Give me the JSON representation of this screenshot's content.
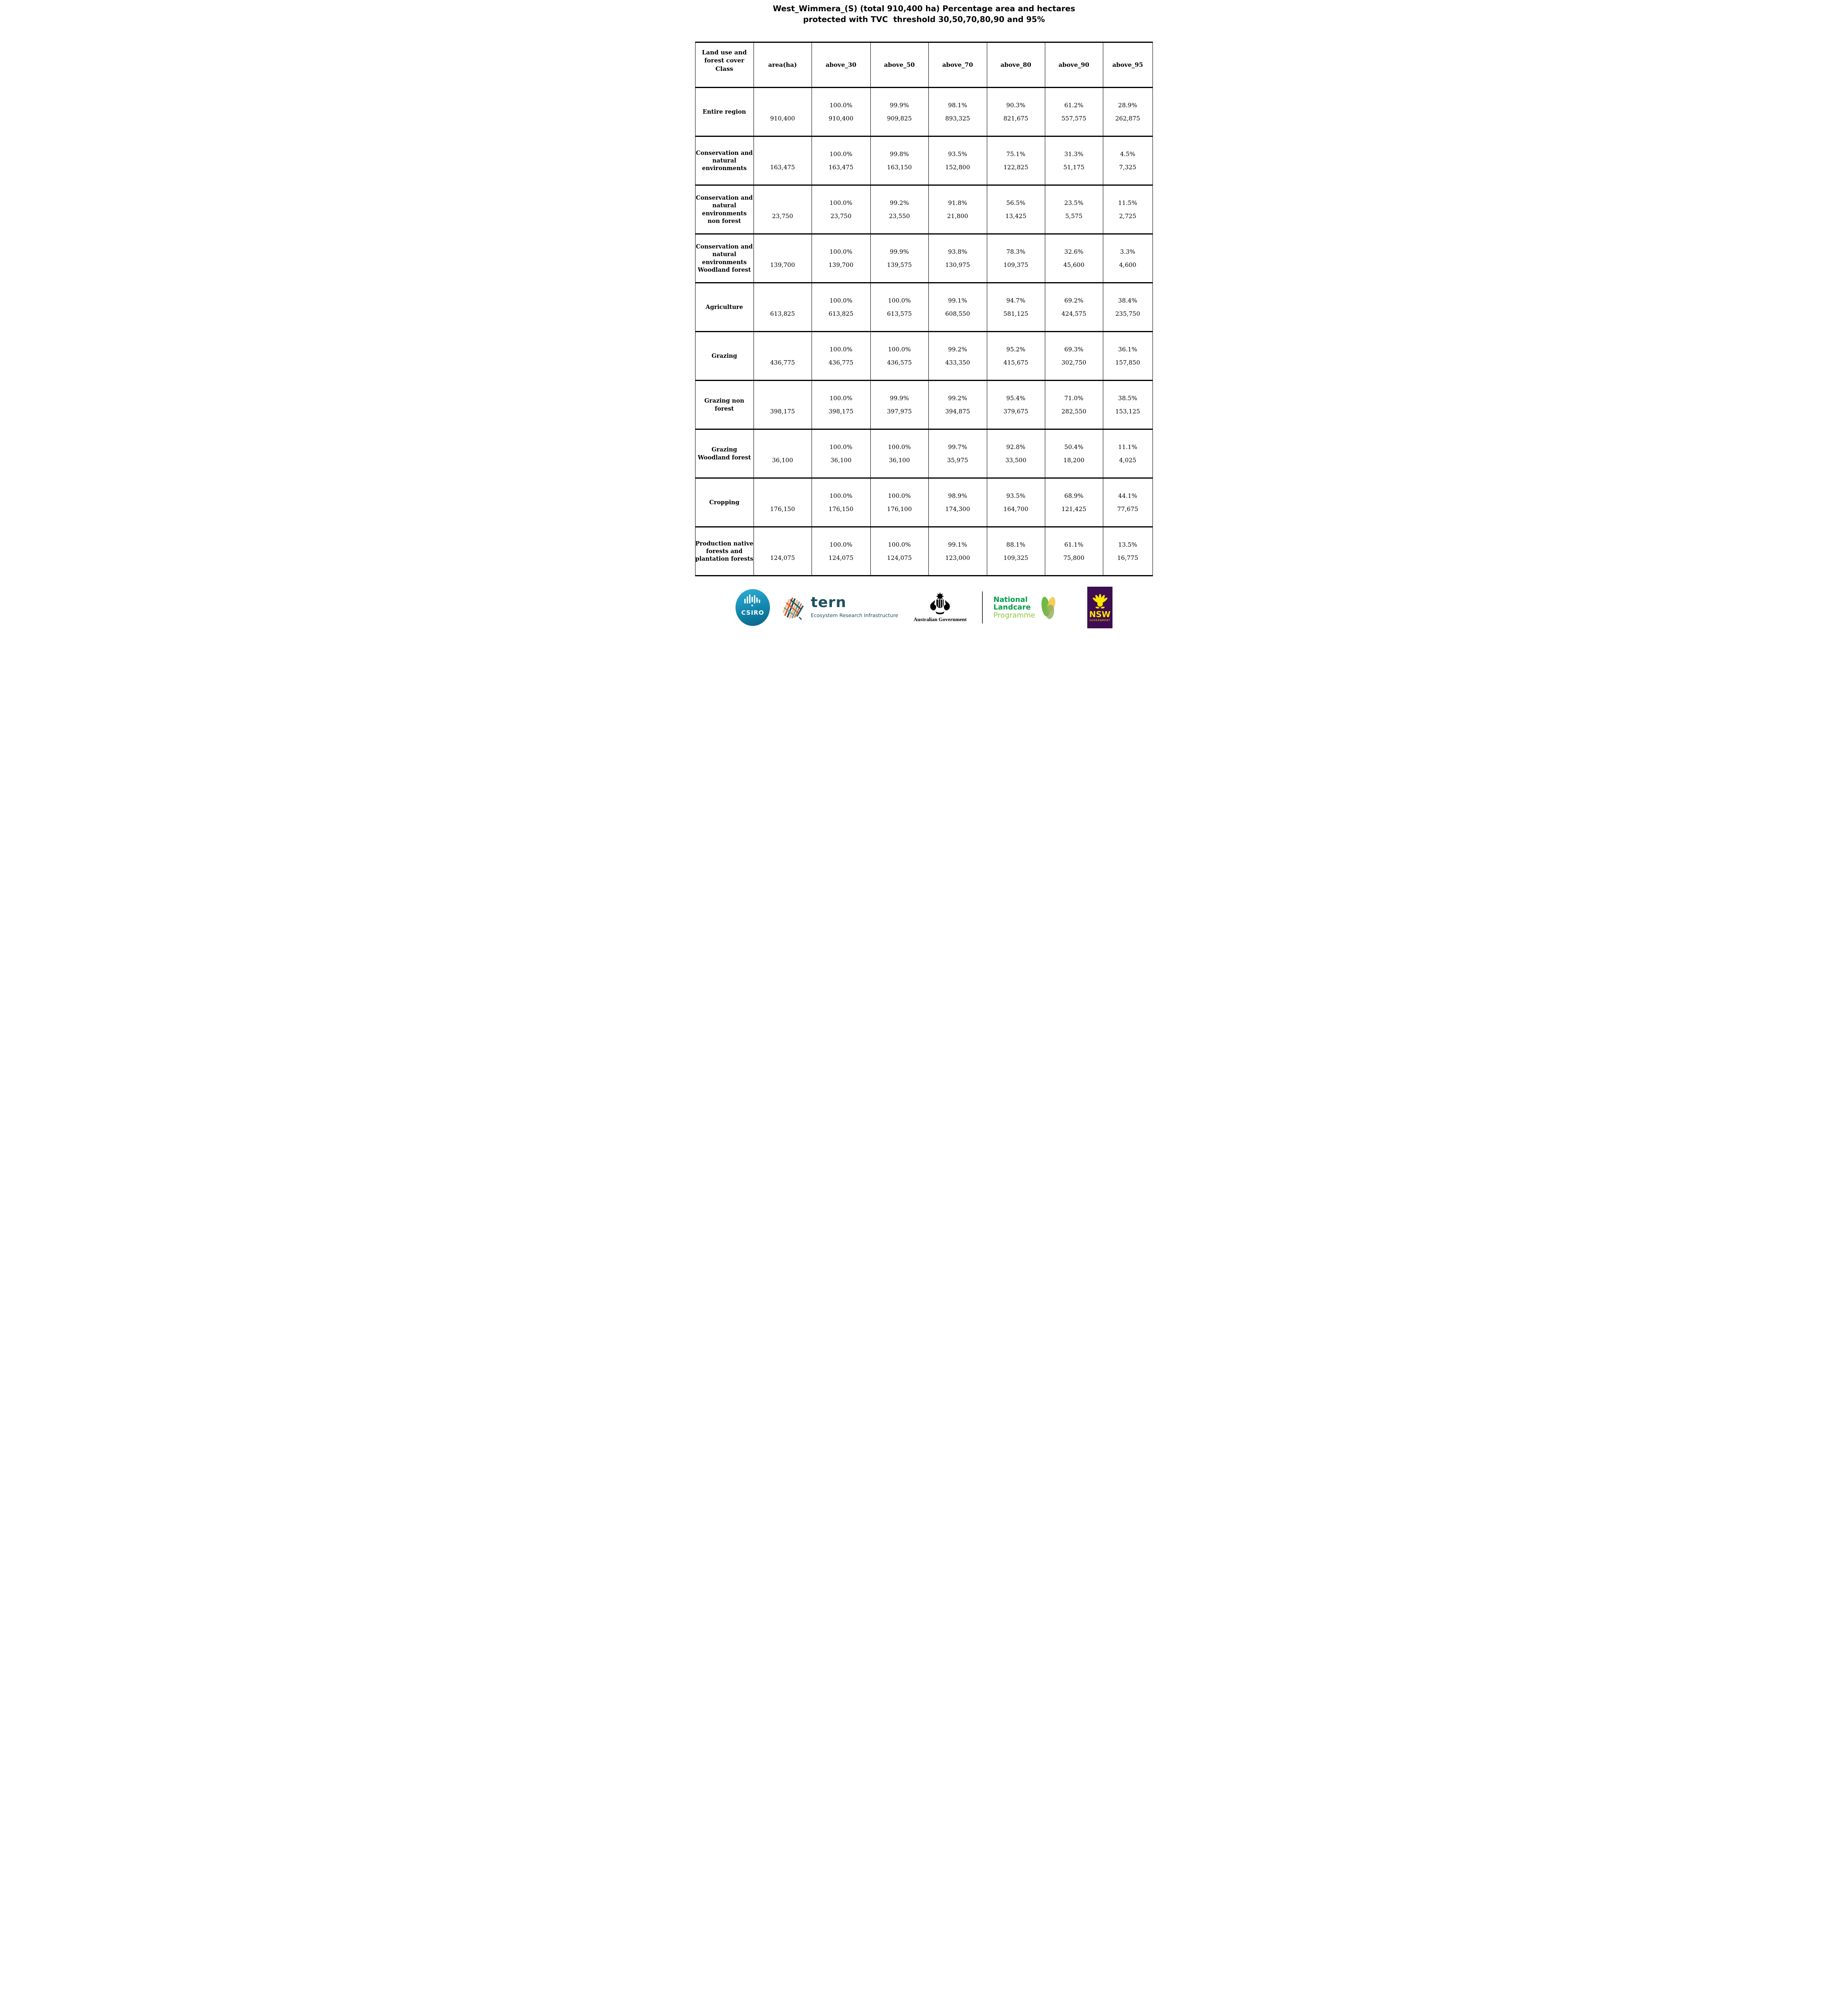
{
  "title": {
    "line1": "West_Wimmera_(S) (total 910,400 ha) Percentage area and hectares",
    "line2": "protected with TVC  threshold 30,50,70,80,90 and 95%"
  },
  "chart_data": {
    "type": "table",
    "title": "West_Wimmera_(S) (total 910,400 ha) Percentage area and hectares protected with TVC  threshold 30,50,70,80,90 and 95%",
    "region_total_ha": "910,400",
    "thresholds": [
      30,
      50,
      70,
      80,
      90,
      95
    ],
    "columns": [
      "Land use and forest cover Class",
      "area(ha)",
      "above_30",
      "above_50",
      "above_70",
      "above_80",
      "above_90",
      "above_95"
    ],
    "rows": [
      {
        "label": "Entire region",
        "area_ha": "910,400",
        "values": [
          {
            "pct": "100.0%",
            "ha": "910,400"
          },
          {
            "pct": "99.9%",
            "ha": "909,825"
          },
          {
            "pct": "98.1%",
            "ha": "893,325"
          },
          {
            "pct": "90.3%",
            "ha": "821,675"
          },
          {
            "pct": "61.2%",
            "ha": "557,575"
          },
          {
            "pct": "28.9%",
            "ha": "262,875"
          }
        ]
      },
      {
        "label": "Conservation and natural environments",
        "area_ha": "163,475",
        "values": [
          {
            "pct": "100.0%",
            "ha": "163,475"
          },
          {
            "pct": "99.8%",
            "ha": "163,150"
          },
          {
            "pct": "93.5%",
            "ha": "152,800"
          },
          {
            "pct": "75.1%",
            "ha": "122,825"
          },
          {
            "pct": "31.3%",
            "ha": "51,175"
          },
          {
            "pct": "4.5%",
            "ha": "7,325"
          }
        ]
      },
      {
        "label": "Conservation and natural environments non forest",
        "area_ha": "23,750",
        "values": [
          {
            "pct": "100.0%",
            "ha": "23,750"
          },
          {
            "pct": "99.2%",
            "ha": "23,550"
          },
          {
            "pct": "91.8%",
            "ha": "21,800"
          },
          {
            "pct": "56.5%",
            "ha": "13,425"
          },
          {
            "pct": "23.5%",
            "ha": "5,575"
          },
          {
            "pct": "11.5%",
            "ha": "2,725"
          }
        ]
      },
      {
        "label": "Conservation and natural environments Woodland forest",
        "area_ha": "139,700",
        "values": [
          {
            "pct": "100.0%",
            "ha": "139,700"
          },
          {
            "pct": "99.9%",
            "ha": "139,575"
          },
          {
            "pct": "93.8%",
            "ha": "130,975"
          },
          {
            "pct": "78.3%",
            "ha": "109,375"
          },
          {
            "pct": "32.6%",
            "ha": "45,600"
          },
          {
            "pct": "3.3%",
            "ha": "4,600"
          }
        ]
      },
      {
        "label": "Agriculture",
        "area_ha": "613,825",
        "values": [
          {
            "pct": "100.0%",
            "ha": "613,825"
          },
          {
            "pct": "100.0%",
            "ha": "613,575"
          },
          {
            "pct": "99.1%",
            "ha": "608,550"
          },
          {
            "pct": "94.7%",
            "ha": "581,125"
          },
          {
            "pct": "69.2%",
            "ha": "424,575"
          },
          {
            "pct": "38.4%",
            "ha": "235,750"
          }
        ]
      },
      {
        "label": "Grazing",
        "area_ha": "436,775",
        "values": [
          {
            "pct": "100.0%",
            "ha": "436,775"
          },
          {
            "pct": "100.0%",
            "ha": "436,575"
          },
          {
            "pct": "99.2%",
            "ha": "433,350"
          },
          {
            "pct": "95.2%",
            "ha": "415,675"
          },
          {
            "pct": "69.3%",
            "ha": "302,750"
          },
          {
            "pct": "36.1%",
            "ha": "157,850"
          }
        ]
      },
      {
        "label": "Grazing non forest",
        "area_ha": "398,175",
        "values": [
          {
            "pct": "100.0%",
            "ha": "398,175"
          },
          {
            "pct": "99.9%",
            "ha": "397,975"
          },
          {
            "pct": "99.2%",
            "ha": "394,875"
          },
          {
            "pct": "95.4%",
            "ha": "379,675"
          },
          {
            "pct": "71.0%",
            "ha": "282,550"
          },
          {
            "pct": "38.5%",
            "ha": "153,125"
          }
        ]
      },
      {
        "label": "Grazing Woodland forest",
        "area_ha": "36,100",
        "values": [
          {
            "pct": "100.0%",
            "ha": "36,100"
          },
          {
            "pct": "100.0%",
            "ha": "36,100"
          },
          {
            "pct": "99.7%",
            "ha": "35,975"
          },
          {
            "pct": "92.8%",
            "ha": "33,500"
          },
          {
            "pct": "50.4%",
            "ha": "18,200"
          },
          {
            "pct": "11.1%",
            "ha": "4,025"
          }
        ]
      },
      {
        "label": "Cropping",
        "area_ha": "176,150",
        "values": [
          {
            "pct": "100.0%",
            "ha": "176,150"
          },
          {
            "pct": "100.0%",
            "ha": "176,100"
          },
          {
            "pct": "98.9%",
            "ha": "174,300"
          },
          {
            "pct": "93.5%",
            "ha": "164,700"
          },
          {
            "pct": "68.9%",
            "ha": "121,425"
          },
          {
            "pct": "44.1%",
            "ha": "77,675"
          }
        ]
      },
      {
        "label": "Production native forests and plantation forests",
        "area_ha": "124,075",
        "values": [
          {
            "pct": "100.0%",
            "ha": "124,075"
          },
          {
            "pct": "100.0%",
            "ha": "124,075"
          },
          {
            "pct": "99.1%",
            "ha": "123,000"
          },
          {
            "pct": "88.1%",
            "ha": "109,325"
          },
          {
            "pct": "61.1%",
            "ha": "75,800"
          },
          {
            "pct": "13.5%",
            "ha": "16,775"
          }
        ]
      }
    ]
  },
  "footer": {
    "csiro": {
      "label": "CSIRO"
    },
    "tern": {
      "name": "tern",
      "subtitle": "Ecosystem Research Infrastructure"
    },
    "australian_government": {
      "label": "Australian Government"
    },
    "landcare": {
      "line1": "National",
      "line2": "Landcare",
      "line3": "Programme"
    },
    "nsw": {
      "name": "NSW",
      "sub": "GOVERNMENT"
    }
  },
  "colors": {
    "csiro_teal_top": "#2FAFD8",
    "csiro_teal_bottom": "#0A6284",
    "tern_dark_teal": "#1D505F",
    "landcare_green": "#009E49",
    "landcare_light_green": "#8DC63F",
    "nsw_purple": "#3E0D52",
    "nsw_yellow": "#FFE600"
  }
}
